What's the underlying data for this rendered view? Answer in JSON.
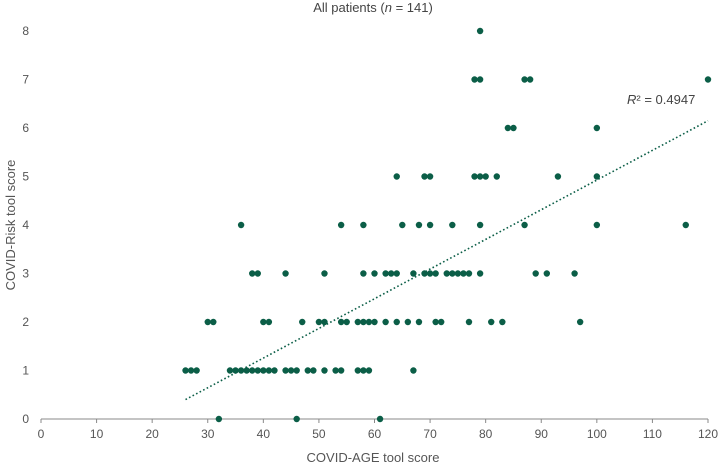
{
  "chart_data": {
    "type": "scatter",
    "title": {
      "prefix": "All patients (",
      "italic": "n",
      "suffix": " = 141)"
    },
    "xlabel": "COVID-AGE tool score",
    "ylabel": "COVID-Risk tool score",
    "xlim": [
      0,
      120
    ],
    "ylim": [
      0,
      8
    ],
    "xticks": [
      "0",
      "10",
      "20",
      "30",
      "40",
      "50",
      "60",
      "70",
      "80",
      "90",
      "100",
      "110",
      "120"
    ],
    "yticks": [
      "0",
      "1",
      "2",
      "3",
      "4",
      "5",
      "6",
      "7",
      "8"
    ],
    "grid": false,
    "legend": "none",
    "point_color": "#0b5e47",
    "trendline": {
      "style": "dotted",
      "color": "#0b5e47",
      "x": [
        26,
        120
      ],
      "y": [
        0.4,
        6.15
      ]
    },
    "annotation": {
      "italic": "R",
      "rest": "² = 0.4947"
    },
    "points": [
      [
        32,
        0
      ],
      [
        46,
        0
      ],
      [
        61,
        0
      ],
      [
        26,
        1
      ],
      [
        27,
        1
      ],
      [
        28,
        1
      ],
      [
        34,
        1
      ],
      [
        35,
        1
      ],
      [
        36,
        1
      ],
      [
        37,
        1
      ],
      [
        38,
        1
      ],
      [
        39,
        1
      ],
      [
        40,
        1
      ],
      [
        41,
        1
      ],
      [
        42,
        1
      ],
      [
        44,
        1
      ],
      [
        45,
        1
      ],
      [
        46,
        1
      ],
      [
        48,
        1
      ],
      [
        49,
        1
      ],
      [
        51,
        1
      ],
      [
        53,
        1
      ],
      [
        54,
        1
      ],
      [
        57,
        1
      ],
      [
        58,
        1
      ],
      [
        59,
        1
      ],
      [
        67,
        1
      ],
      [
        30,
        2
      ],
      [
        31,
        2
      ],
      [
        40,
        2
      ],
      [
        41,
        2
      ],
      [
        47,
        2
      ],
      [
        50,
        2
      ],
      [
        51,
        2
      ],
      [
        54,
        2
      ],
      [
        55,
        2
      ],
      [
        57,
        2
      ],
      [
        58,
        2
      ],
      [
        59,
        2
      ],
      [
        60,
        2
      ],
      [
        62,
        2
      ],
      [
        64,
        2
      ],
      [
        66,
        2
      ],
      [
        68,
        2
      ],
      [
        71,
        2
      ],
      [
        72,
        2
      ],
      [
        77,
        2
      ],
      [
        81,
        2
      ],
      [
        83,
        2
      ],
      [
        97,
        2
      ],
      [
        38,
        3
      ],
      [
        39,
        3
      ],
      [
        44,
        3
      ],
      [
        51,
        3
      ],
      [
        58,
        3
      ],
      [
        60,
        3
      ],
      [
        62,
        3
      ],
      [
        63,
        3
      ],
      [
        64,
        3
      ],
      [
        67,
        3
      ],
      [
        69,
        3
      ],
      [
        70,
        3
      ],
      [
        71,
        3
      ],
      [
        73,
        3
      ],
      [
        74,
        3
      ],
      [
        75,
        3
      ],
      [
        76,
        3
      ],
      [
        77,
        3
      ],
      [
        79,
        3
      ],
      [
        89,
        3
      ],
      [
        91,
        3
      ],
      [
        96,
        3
      ],
      [
        36,
        4
      ],
      [
        54,
        4
      ],
      [
        58,
        4
      ],
      [
        65,
        4
      ],
      [
        68,
        4
      ],
      [
        70,
        4
      ],
      [
        74,
        4
      ],
      [
        79,
        4
      ],
      [
        87,
        4
      ],
      [
        100,
        4
      ],
      [
        116,
        4
      ],
      [
        64,
        5
      ],
      [
        69,
        5
      ],
      [
        70,
        5
      ],
      [
        78,
        5
      ],
      [
        79,
        5
      ],
      [
        80,
        5
      ],
      [
        82,
        5
      ],
      [
        93,
        5
      ],
      [
        100,
        5
      ],
      [
        84,
        6
      ],
      [
        85,
        6
      ],
      [
        100,
        6
      ],
      [
        78,
        7
      ],
      [
        79,
        7
      ],
      [
        87,
        7
      ],
      [
        88,
        7
      ],
      [
        120,
        7
      ],
      [
        79,
        8
      ]
    ]
  }
}
